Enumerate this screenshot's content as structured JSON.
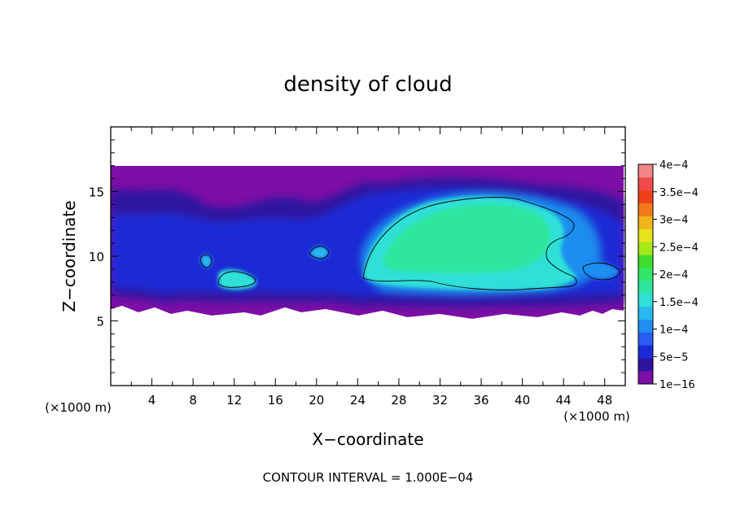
{
  "chart_data": {
    "type": "heatmap",
    "title": "density of cloud",
    "xlabel": "X−coordinate",
    "ylabel": "Z−coordinate",
    "x_unit_left": "(×1000 m)",
    "x_unit_right": "(×1000 m)",
    "footer": "CONTOUR INTERVAL = 1.000E−04",
    "xlim": [
      0,
      50
    ],
    "ylim": [
      0,
      20
    ],
    "x_ticks": [
      4,
      8,
      12,
      16,
      20,
      24,
      28,
      32,
      36,
      40,
      44,
      48
    ],
    "x_tick_labels": [
      "4",
      "8",
      "12",
      "16",
      "20",
      "24",
      "28",
      "32",
      "36",
      "40",
      "44",
      "48"
    ],
    "y_ticks": [
      5,
      10,
      15
    ],
    "y_tick_labels": [
      "5",
      "10",
      "15"
    ],
    "contour_interval": 0.0001,
    "colorbar": {
      "min": 1e-16,
      "max": 0.0004,
      "tick_labels": [
        "1e−16",
        "5e−5",
        "1e−4",
        "1.5e−4",
        "2e−4",
        "2.5e−4",
        "3e−4",
        "3.5e−4",
        "4e−4"
      ],
      "colors": [
        "#7d0fa6",
        "#2e12a0",
        "#1a2bd6",
        "#2a5cf0",
        "#1f8ef0",
        "#27b9f0",
        "#2ee0d8",
        "#2ee6a0",
        "#33e66a",
        "#3fdd2a",
        "#a6e81a",
        "#e6e31a",
        "#f0b51a",
        "#f07a1a",
        "#f0401a",
        "#f04a4a",
        "#f08585"
      ]
    },
    "regions": [
      {
        "name": "cloud layer",
        "x": [
          0,
          50
        ],
        "z": [
          5.5,
          17
        ],
        "level": 1e-16
      },
      {
        "name": "main cell",
        "x": [
          24,
          45
        ],
        "z": [
          7.5,
          14.5
        ],
        "level": 0.00015
      },
      {
        "name": "small cell",
        "x": [
          10.5,
          14
        ],
        "z": [
          7.5,
          9
        ],
        "level": 0.00012
      }
    ]
  }
}
